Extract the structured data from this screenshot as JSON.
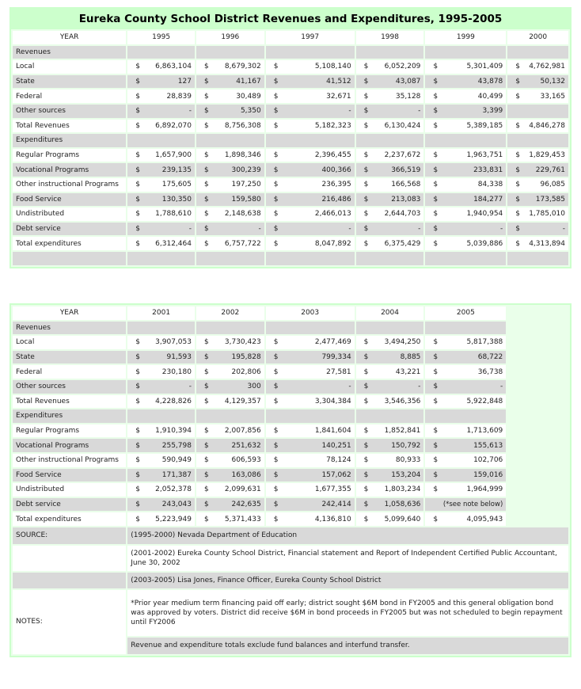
{
  "title": "Eureka County School District Revenues and Expenditures, 1995-2005",
  "tables": [
    {
      "header": [
        "YEAR",
        "1995",
        "1996",
        "1997",
        "1998",
        "1999",
        "2000"
      ],
      "rows": [
        {
          "label": "Revenues",
          "cells": []
        },
        {
          "label": "Local",
          "cells": [
            [
              "$",
              "6,863,104"
            ],
            [
              "$",
              "8,679,302"
            ],
            [
              "$",
              "5,108,140"
            ],
            [
              "$",
              "6,052,209"
            ],
            [
              "$",
              "5,301,409"
            ],
            [
              "$",
              "4,762,981"
            ]
          ]
        },
        {
          "label": "State",
          "cells": [
            [
              "$",
              "127"
            ],
            [
              "$",
              "41,167"
            ],
            [
              "$",
              "41,512"
            ],
            [
              "$",
              "43,087"
            ],
            [
              "$",
              "43,878"
            ],
            [
              "$",
              "50,132"
            ]
          ]
        },
        {
          "label": "Federal",
          "cells": [
            [
              "$",
              "28,839"
            ],
            [
              "$",
              "30,489"
            ],
            [
              "$",
              "32,671"
            ],
            [
              "$",
              "35,128"
            ],
            [
              "$",
              "40,499"
            ],
            [
              "$",
              "33,165"
            ]
          ]
        },
        {
          "label": "Other sources",
          "cells": [
            [
              "$",
              "-"
            ],
            [
              "$",
              "5,350"
            ],
            [
              "$",
              "-"
            ],
            [
              "$",
              "-"
            ],
            [
              "$",
              "3,399"
            ],
            null
          ]
        },
        {
          "label": "Total Revenues",
          "cells": [
            [
              "$",
              "6,892,070"
            ],
            [
              "$",
              "8,756,308"
            ],
            [
              "$",
              "5,182,323"
            ],
            [
              "$",
              "6,130,424"
            ],
            [
              "$",
              "5,389,185"
            ],
            [
              "$",
              "4,846,278"
            ]
          ]
        },
        {
          "label": "Expenditures",
          "cells": []
        },
        {
          "label": "Regular Programs",
          "cells": [
            [
              "$",
              "1,657,900"
            ],
            [
              "$",
              "1,898,346"
            ],
            [
              "$",
              "2,396,455"
            ],
            [
              "$",
              "2,237,672"
            ],
            [
              "$",
              "1,963,751"
            ],
            [
              "$",
              "1,829,453"
            ]
          ]
        },
        {
          "label": "Vocational Programs",
          "cells": [
            [
              "$",
              "239,135"
            ],
            [
              "$",
              "300,239"
            ],
            [
              "$",
              "400,366"
            ],
            [
              "$",
              "366,519"
            ],
            [
              "$",
              "233,831"
            ],
            [
              "$",
              "229,761"
            ]
          ]
        },
        {
          "label": "Other instructional Programs",
          "cells": [
            [
              "$",
              "175,605"
            ],
            [
              "$",
              "197,250"
            ],
            [
              "$",
              "236,395"
            ],
            [
              "$",
              "166,568"
            ],
            [
              "$",
              "84,338"
            ],
            [
              "$",
              "96,085"
            ]
          ]
        },
        {
          "label": "Food Service",
          "cells": [
            [
              "$",
              "130,350"
            ],
            [
              "$",
              "159,580"
            ],
            [
              "$",
              "216,486"
            ],
            [
              "$",
              "213,083"
            ],
            [
              "$",
              "184,277"
            ],
            [
              "$",
              "173,585"
            ]
          ]
        },
        {
          "label": "Undistributed",
          "cells": [
            [
              "$",
              "1,788,610"
            ],
            [
              "$",
              "2,148,638"
            ],
            [
              "$",
              "2,466,013"
            ],
            [
              "$",
              "2,644,703"
            ],
            [
              "$",
              "1,940,954"
            ],
            [
              "$",
              "1,785,010"
            ]
          ]
        },
        {
          "label": "Debt service",
          "cells": [
            [
              "$",
              "-"
            ],
            [
              "$",
              "-"
            ],
            [
              "$",
              "-"
            ],
            [
              "$",
              "-"
            ],
            [
              "$",
              "-"
            ],
            [
              "$",
              "-"
            ]
          ]
        },
        {
          "label": "Total expenditures",
          "cells": [
            [
              "$",
              "6,312,464"
            ],
            [
              "$",
              "6,757,722"
            ],
            [
              "$",
              "8,047,892"
            ],
            [
              "$",
              "6,375,429"
            ],
            [
              "$",
              "5,039,886"
            ],
            [
              "$",
              "4,313,894"
            ]
          ]
        },
        {
          "label": null,
          "cells": []
        }
      ]
    },
    {
      "header": [
        "YEAR",
        "2001",
        "2002",
        "2003",
        "2004",
        "2005"
      ],
      "rows": [
        {
          "label": "Revenues",
          "cells": []
        },
        {
          "label": "Local",
          "cells": [
            [
              "$",
              "3,907,053"
            ],
            [
              "$",
              "3,730,423"
            ],
            [
              "$",
              "2,477,469"
            ],
            [
              "$",
              "3,494,250"
            ],
            [
              "$",
              "5,817,388"
            ]
          ]
        },
        {
          "label": "State",
          "cells": [
            [
              "$",
              "91,593"
            ],
            [
              "$",
              "195,828"
            ],
            [
              "$",
              "799,334"
            ],
            [
              "$",
              "8,885"
            ],
            [
              "$",
              "68,722"
            ]
          ]
        },
        {
          "label": "Federal",
          "cells": [
            [
              "$",
              "230,180"
            ],
            [
              "$",
              "202,806"
            ],
            [
              "$",
              "27,581"
            ],
            [
              "$",
              "43,221"
            ],
            [
              "$",
              "36,738"
            ]
          ]
        },
        {
          "label": "Other sources",
          "cells": [
            [
              "$",
              "-"
            ],
            [
              "$",
              "300"
            ],
            [
              "$",
              "-"
            ],
            [
              "$",
              "-"
            ],
            [
              "$",
              "-"
            ]
          ]
        },
        {
          "label": "Total Revenues",
          "cells": [
            [
              "$",
              "4,228,826"
            ],
            [
              "$",
              "4,129,357"
            ],
            [
              "$",
              "3,304,384"
            ],
            [
              "$",
              "3,546,356"
            ],
            [
              "$",
              "5,922,848"
            ]
          ]
        },
        {
          "label": "Expenditures",
          "cells": []
        },
        {
          "label": "Regular Programs",
          "cells": [
            [
              "$",
              "1,910,394"
            ],
            [
              "$",
              "2,007,856"
            ],
            [
              "$",
              "1,841,604"
            ],
            [
              "$",
              "1,852,841"
            ],
            [
              "$",
              "1,713,609"
            ]
          ]
        },
        {
          "label": "Vocational Programs",
          "cells": [
            [
              "$",
              "255,798"
            ],
            [
              "$",
              "251,632"
            ],
            [
              "$",
              "140,251"
            ],
            [
              "$",
              "150,792"
            ],
            [
              "$",
              "155,613"
            ]
          ]
        },
        {
          "label": "Other instructional Programs",
          "cells": [
            [
              "$",
              "590,949"
            ],
            [
              "$",
              "606,593"
            ],
            [
              "$",
              "78,124"
            ],
            [
              "$",
              "80,933"
            ],
            [
              "$",
              "102,706"
            ]
          ]
        },
        {
          "label": "Food Service",
          "cells": [
            [
              "$",
              "171,387"
            ],
            [
              "$",
              "163,086"
            ],
            [
              "$",
              "157,062"
            ],
            [
              "$",
              "153,204"
            ],
            [
              "$",
              "159,016"
            ]
          ]
        },
        {
          "label": "Undistributed",
          "cells": [
            [
              "$",
              "2,052,378"
            ],
            [
              "$",
              "2,099,631"
            ],
            [
              "$",
              "1,677,355"
            ],
            [
              "$",
              "1,803,234"
            ],
            [
              "$",
              "1,964,999"
            ]
          ]
        },
        {
          "label": "Debt service",
          "cells": [
            [
              "$",
              "243,043"
            ],
            [
              "$",
              "242,635"
            ],
            [
              "$",
              "242,414"
            ],
            [
              "$",
              "1,058,636"
            ],
            "(*see note below)"
          ]
        },
        {
          "label": "Total expenditures",
          "cells": [
            [
              "$",
              "5,223,949"
            ],
            [
              "$",
              "5,371,433"
            ],
            [
              "$",
              "4,136,810"
            ],
            [
              "$",
              "5,099,640"
            ],
            [
              "$",
              "4,095,943"
            ]
          ]
        }
      ]
    }
  ],
  "sources": {
    "label": "SOURCE:",
    "lines": [
      "(1995-2000) Nevada Department of Education",
      "(2001-2002) Eureka County School District, Financial statement and Report of Independent Certified Public Accountant, June 30, 2002",
      "(2003-2005) Lisa Jones, Finance Officer, Eureka County School District"
    ]
  },
  "notes": {
    "label": "NOTES:",
    "lines": [
      "*Prior year medium term financing paid off early; district sought $6M bond in FY2005 and this general obligation bond was approved by voters. District did receive $6M in bond proceeds in FY2005 but was not scheduled to begin repayment until FY2006",
      "Revenue and expenditure totals exclude fund balances and interfund transfer."
    ]
  }
}
